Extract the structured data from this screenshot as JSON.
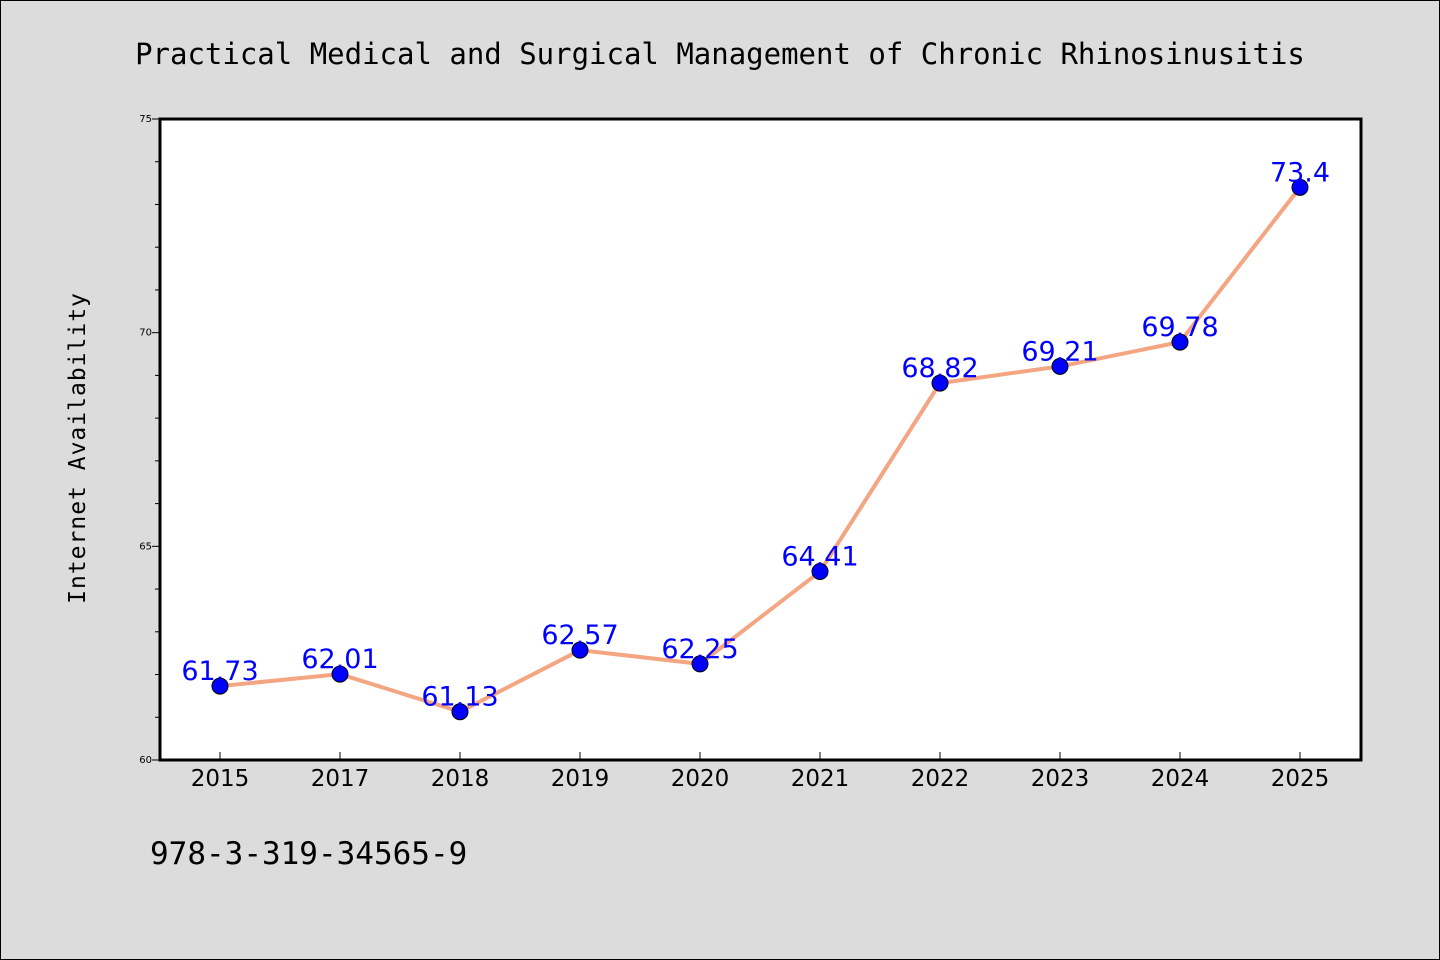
{
  "chart_data": {
    "type": "line",
    "title": "Practical Medical and Surgical Management of Chronic Rhinosinusitis",
    "ylabel": "Internet Availability",
    "xlabel": "",
    "categories": [
      "2015",
      "2017",
      "2018",
      "2019",
      "2020",
      "2021",
      "2022",
      "2023",
      "2024",
      "2025"
    ],
    "series": [
      {
        "values": [
          61.73,
          62.01,
          61.13,
          62.57,
          62.25,
          64.41,
          68.82,
          69.21,
          69.78,
          73.4
        ],
        "labels": [
          "61.73",
          "62.01",
          "61.13",
          "62.57",
          "62.25",
          "64.41",
          "68.82",
          "69.21",
          "69.78",
          "73.4"
        ]
      }
    ],
    "ylim": [
      60,
      75
    ],
    "yticks": [
      "60",
      "65",
      "70",
      "75"
    ],
    "grid": false,
    "colors": {
      "line": "#f4a582",
      "marker": "#0000ff",
      "data_label": "#0000ff",
      "background": "#dcdcdc",
      "plot_background": "#ffffff"
    }
  },
  "footer_text": "978-3-319-34565-9"
}
